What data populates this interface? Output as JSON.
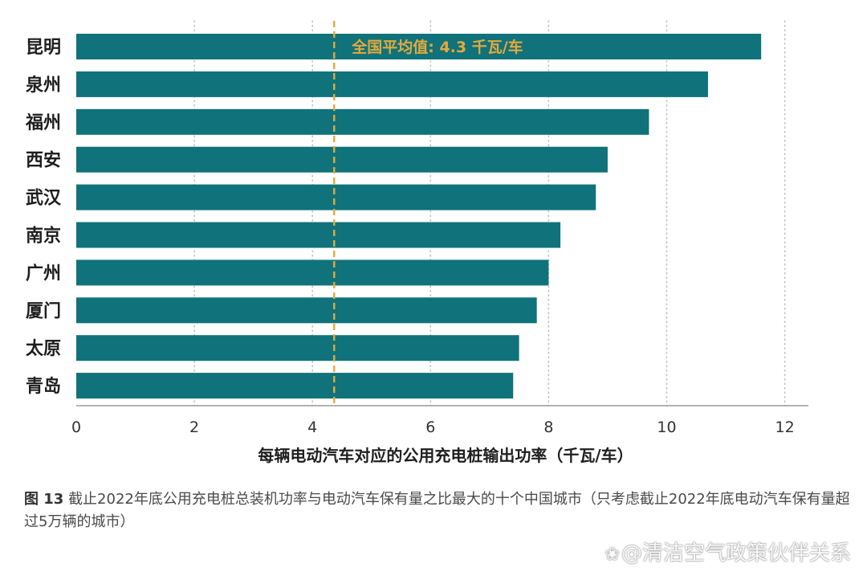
{
  "colors": {
    "bar": "#10727a",
    "average": "#e5a93b",
    "axis": "#9a9a9a",
    "grid": "#c4c4c4"
  },
  "chart_data": {
    "type": "bar",
    "orientation": "horizontal",
    "categories": [
      "昆明",
      "泉州",
      "福州",
      "西安",
      "武汉",
      "南京",
      "广州",
      "厦门",
      "太原",
      "青岛"
    ],
    "values": [
      11.6,
      10.7,
      9.7,
      9.0,
      8.8,
      8.2,
      8.0,
      7.8,
      7.5,
      7.4
    ],
    "xlabel": "每辆电动汽车对应的公用充电桩输出功率（千瓦/车）",
    "xlim": [
      0,
      12.4
    ],
    "xticks": [
      0,
      2,
      4,
      6,
      8,
      10,
      12
    ],
    "grid": "vertical dotted",
    "average_line": {
      "value": 4.3,
      "label": "全国平均值: 4.3 千瓦/车"
    }
  },
  "caption": {
    "figure_label": "图 13",
    "text": "截止2022年底公用充电桩总装机功率与电动汽车保有量之比最大的十个中国城市（只考虑截止2022年底电动汽车保有量超过5万辆的城市）"
  },
  "watermark": {
    "icon": "paw-icon",
    "text": "@清洁空气政策伙伴关系"
  }
}
